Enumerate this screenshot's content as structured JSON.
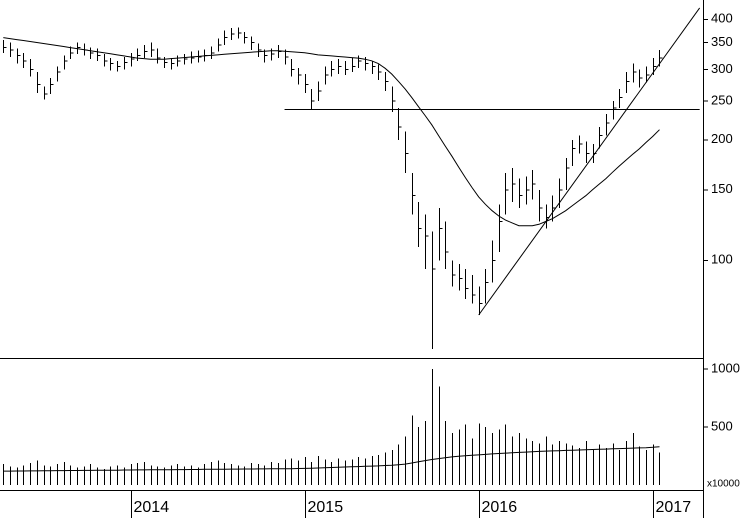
{
  "chart_data": {
    "type": "ohlc",
    "log_scale": true,
    "color": "#000000",
    "categories": [
      null,
      null,
      null,
      null,
      null,
      null,
      null,
      null,
      null,
      null,
      null,
      null,
      null,
      null,
      null,
      null,
      null,
      null,
      null,
      "2014",
      null,
      null,
      null,
      null,
      null,
      null,
      null,
      null,
      null,
      null,
      null,
      null,
      null,
      null,
      null,
      null,
      null,
      null,
      null,
      null,
      null,
      null,
      null,
      null,
      null,
      "2015",
      null,
      null,
      null,
      null,
      null,
      null,
      null,
      null,
      null,
      null,
      null,
      null,
      null,
      null,
      null,
      null,
      null,
      null,
      null,
      null,
      null,
      null,
      null,
      null,
      null,
      "2016",
      null,
      null,
      null,
      null,
      null,
      null,
      null,
      null,
      null,
      null,
      null,
      null,
      null,
      null,
      null,
      null,
      null,
      null,
      null,
      null,
      null,
      null,
      null,
      null,
      null,
      "2017",
      null,
      null,
      null,
      null,
      null,
      null,
      null
    ],
    "high": [
      355,
      350,
      338,
      330,
      318,
      295,
      272,
      285,
      305,
      325,
      342,
      350,
      348,
      340,
      338,
      328,
      320,
      315,
      322,
      330,
      338,
      345,
      350,
      338,
      322,
      320,
      325,
      328,
      332,
      334,
      336,
      342,
      358,
      375,
      380,
      382,
      372,
      362,
      348,
      336,
      338,
      345,
      336,
      318,
      302,
      292,
      268,
      280,
      305,
      315,
      318,
      315,
      320,
      325,
      322,
      315,
      308,
      295,
      272,
      240,
      210,
      165,
      140,
      130,
      118,
      135,
      125,
      100,
      98,
      95,
      92,
      86,
      95,
      112,
      138,
      165,
      170,
      160,
      162,
      168,
      150,
      138,
      145,
      160,
      180,
      200,
      205,
      198,
      195,
      215,
      232,
      250,
      268,
      295,
      310,
      300,
      305,
      320,
      335,
      null,
      null,
      null,
      null,
      null,
      null
    ],
    "low": [
      330,
      322,
      310,
      302,
      288,
      262,
      252,
      260,
      280,
      300,
      318,
      328,
      325,
      318,
      315,
      305,
      298,
      296,
      300,
      305,
      315,
      320,
      322,
      310,
      302,
      300,
      305,
      308,
      310,
      312,
      314,
      318,
      332,
      345,
      355,
      358,
      348,
      335,
      322,
      312,
      316,
      320,
      308,
      288,
      275,
      262,
      238,
      250,
      275,
      288,
      292,
      290,
      295,
      302,
      298,
      292,
      282,
      265,
      235,
      200,
      165,
      130,
      108,
      95,
      60,
      100,
      95,
      86,
      84,
      80,
      78,
      73,
      78,
      88,
      105,
      130,
      140,
      135,
      138,
      142,
      125,
      120,
      125,
      135,
      150,
      172,
      185,
      175,
      175,
      190,
      205,
      225,
      240,
      262,
      278,
      270,
      278,
      290,
      305,
      null,
      null,
      null,
      null,
      null,
      null
    ],
    "close": [
      340,
      335,
      325,
      315,
      300,
      275,
      260,
      275,
      295,
      315,
      330,
      340,
      335,
      330,
      325,
      315,
      310,
      305,
      312,
      318,
      325,
      332,
      335,
      320,
      312,
      310,
      315,
      318,
      320,
      322,
      325,
      330,
      345,
      360,
      368,
      370,
      360,
      350,
      335,
      325,
      328,
      332,
      322,
      300,
      290,
      275,
      250,
      265,
      290,
      300,
      305,
      300,
      305,
      315,
      310,
      305,
      295,
      280,
      250,
      215,
      185,
      145,
      120,
      115,
      95,
      120,
      105,
      92,
      90,
      85,
      82,
      78,
      88,
      100,
      125,
      150,
      155,
      145,
      150,
      155,
      135,
      128,
      135,
      150,
      170,
      190,
      195,
      185,
      185,
      205,
      220,
      240,
      255,
      280,
      295,
      285,
      290,
      305,
      320,
      null,
      null,
      null,
      null,
      null,
      null
    ],
    "moving_average": [
      360,
      358,
      356,
      354,
      352,
      350,
      348,
      346,
      344,
      342,
      340,
      338,
      336,
      334,
      332,
      330,
      328,
      326,
      324,
      322,
      320,
      319,
      318,
      318,
      318,
      319,
      320,
      321,
      322,
      323,
      324,
      325,
      326,
      327,
      328,
      329,
      330,
      331,
      332,
      333,
      334,
      334,
      333,
      332,
      331,
      330,
      328,
      326,
      325,
      324,
      323,
      322,
      321,
      320,
      318,
      315,
      310,
      302,
      292,
      280,
      268,
      255,
      242,
      230,
      218,
      205,
      193,
      182,
      171,
      161,
      152,
      144,
      138,
      133,
      129,
      126,
      124,
      122,
      122,
      122,
      123,
      125,
      127,
      130,
      133,
      137,
      141,
      145,
      150,
      155,
      160,
      166,
      172,
      178,
      184,
      190,
      197,
      204,
      212,
      null,
      null,
      null,
      null,
      null,
      null
    ],
    "trendlines": [
      {
        "x": [
          42,
          104
        ],
        "y": [
          238,
          238
        ]
      },
      {
        "x": [
          71,
          104
        ],
        "y": [
          73,
          427
        ]
      }
    ],
    "ylim": [
      57,
      447
    ],
    "yticks": [
      100,
      150,
      200,
      250,
      300,
      350,
      400
    ],
    "volume": [
      180,
      160,
      150,
      170,
      190,
      210,
      170,
      160,
      180,
      200,
      170,
      150,
      160,
      180,
      150,
      140,
      160,
      170,
      150,
      180,
      190,
      200,
      170,
      160,
      150,
      170,
      180,
      160,
      170,
      150,
      180,
      200,
      210,
      190,
      180,
      170,
      160,
      190,
      180,
      170,
      200,
      190,
      220,
      230,
      210,
      240,
      200,
      250,
      220,
      200,
      230,
      210,
      220,
      240,
      230,
      250,
      260,
      280,
      300,
      350,
      420,
      600,
      500,
      550,
      1000,
      850,
      550,
      450,
      480,
      520,
      400,
      530,
      500,
      450,
      480,
      520,
      420,
      450,
      400,
      380,
      360,
      420,
      350,
      380,
      360,
      340,
      320,
      380,
      300,
      350,
      320,
      360,
      300,
      380,
      450,
      330,
      300,
      350,
      280,
      null,
      null,
      null,
      null,
      null,
      null
    ],
    "volume_ma": [
      120,
      120,
      121,
      121,
      122,
      122,
      123,
      123,
      124,
      124,
      125,
      125,
      126,
      126,
      127,
      127,
      128,
      128,
      129,
      129,
      130,
      130,
      131,
      131,
      132,
      132,
      133,
      133,
      134,
      134,
      135,
      135,
      136,
      136,
      137,
      137,
      138,
      138,
      139,
      139,
      140,
      140,
      141,
      141,
      142,
      143,
      145,
      147,
      149,
      151,
      153,
      155,
      157,
      159,
      161,
      163,
      165,
      168,
      171,
      175,
      180,
      190,
      200,
      210,
      220,
      228,
      235,
      242,
      248,
      252,
      256,
      260,
      264,
      268,
      272,
      275,
      278,
      281,
      284,
      287,
      290,
      292,
      294,
      296,
      298,
      300,
      302,
      304,
      306,
      308,
      310,
      312,
      314,
      316,
      318,
      320,
      322,
      325,
      330,
      null,
      null,
      null,
      null,
      null,
      null
    ],
    "y2lim": [
      0,
      1078
    ],
    "y2ticks": [
      500,
      1000
    ],
    "volume_unit": "x10000"
  }
}
